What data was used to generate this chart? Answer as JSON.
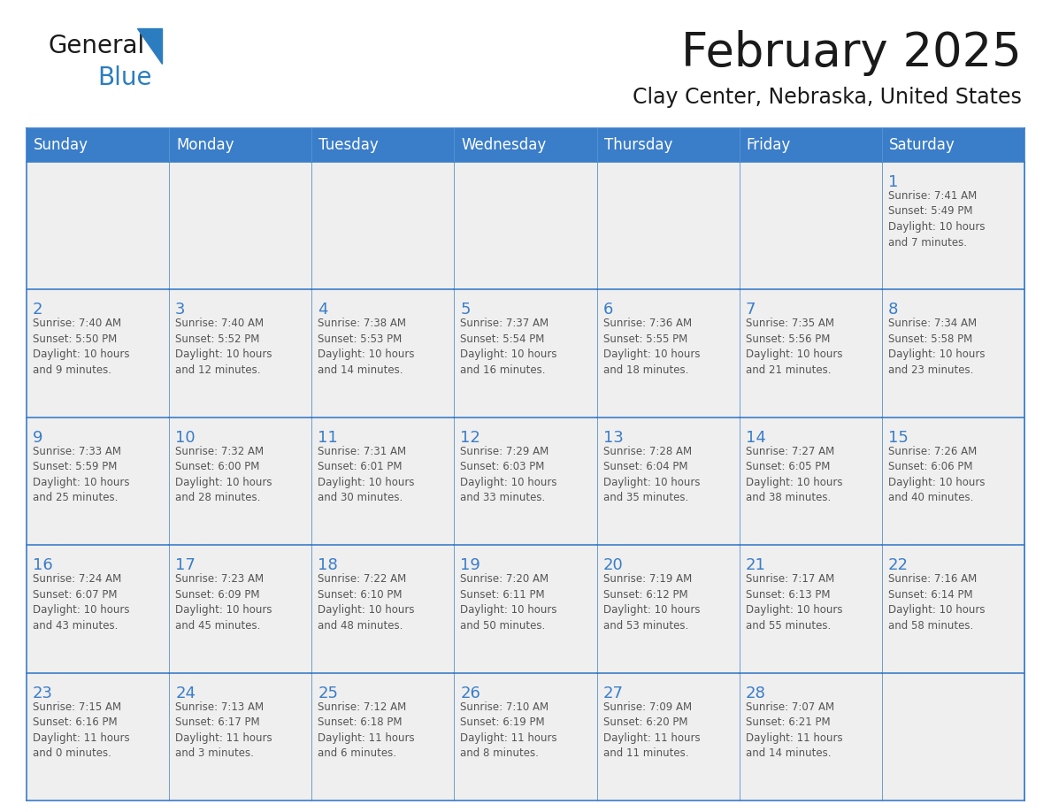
{
  "title": "February 2025",
  "subtitle": "Clay Center, Nebraska, United States",
  "header_bg": "#3A7DC9",
  "header_text": "#FFFFFF",
  "cell_bg_light": "#EFEFEF",
  "cell_bg_white": "#FFFFFF",
  "border_color": "#3A7DC9",
  "day_names": [
    "Sunday",
    "Monday",
    "Tuesday",
    "Wednesday",
    "Thursday",
    "Friday",
    "Saturday"
  ],
  "logo_general_color": "#1a1a1a",
  "logo_blue_color": "#2B7DC0",
  "title_color": "#1a1a1a",
  "subtitle_color": "#1a1a1a",
  "day_num_color": "#3A7DC9",
  "cell_text_color": "#555555",
  "calendar": [
    [
      {
        "day": "",
        "info": ""
      },
      {
        "day": "",
        "info": ""
      },
      {
        "day": "",
        "info": ""
      },
      {
        "day": "",
        "info": ""
      },
      {
        "day": "",
        "info": ""
      },
      {
        "day": "",
        "info": ""
      },
      {
        "day": "1",
        "info": "Sunrise: 7:41 AM\nSunset: 5:49 PM\nDaylight: 10 hours\nand 7 minutes."
      }
    ],
    [
      {
        "day": "2",
        "info": "Sunrise: 7:40 AM\nSunset: 5:50 PM\nDaylight: 10 hours\nand 9 minutes."
      },
      {
        "day": "3",
        "info": "Sunrise: 7:40 AM\nSunset: 5:52 PM\nDaylight: 10 hours\nand 12 minutes."
      },
      {
        "day": "4",
        "info": "Sunrise: 7:38 AM\nSunset: 5:53 PM\nDaylight: 10 hours\nand 14 minutes."
      },
      {
        "day": "5",
        "info": "Sunrise: 7:37 AM\nSunset: 5:54 PM\nDaylight: 10 hours\nand 16 minutes."
      },
      {
        "day": "6",
        "info": "Sunrise: 7:36 AM\nSunset: 5:55 PM\nDaylight: 10 hours\nand 18 minutes."
      },
      {
        "day": "7",
        "info": "Sunrise: 7:35 AM\nSunset: 5:56 PM\nDaylight: 10 hours\nand 21 minutes."
      },
      {
        "day": "8",
        "info": "Sunrise: 7:34 AM\nSunset: 5:58 PM\nDaylight: 10 hours\nand 23 minutes."
      }
    ],
    [
      {
        "day": "9",
        "info": "Sunrise: 7:33 AM\nSunset: 5:59 PM\nDaylight: 10 hours\nand 25 minutes."
      },
      {
        "day": "10",
        "info": "Sunrise: 7:32 AM\nSunset: 6:00 PM\nDaylight: 10 hours\nand 28 minutes."
      },
      {
        "day": "11",
        "info": "Sunrise: 7:31 AM\nSunset: 6:01 PM\nDaylight: 10 hours\nand 30 minutes."
      },
      {
        "day": "12",
        "info": "Sunrise: 7:29 AM\nSunset: 6:03 PM\nDaylight: 10 hours\nand 33 minutes."
      },
      {
        "day": "13",
        "info": "Sunrise: 7:28 AM\nSunset: 6:04 PM\nDaylight: 10 hours\nand 35 minutes."
      },
      {
        "day": "14",
        "info": "Sunrise: 7:27 AM\nSunset: 6:05 PM\nDaylight: 10 hours\nand 38 minutes."
      },
      {
        "day": "15",
        "info": "Sunrise: 7:26 AM\nSunset: 6:06 PM\nDaylight: 10 hours\nand 40 minutes."
      }
    ],
    [
      {
        "day": "16",
        "info": "Sunrise: 7:24 AM\nSunset: 6:07 PM\nDaylight: 10 hours\nand 43 minutes."
      },
      {
        "day": "17",
        "info": "Sunrise: 7:23 AM\nSunset: 6:09 PM\nDaylight: 10 hours\nand 45 minutes."
      },
      {
        "day": "18",
        "info": "Sunrise: 7:22 AM\nSunset: 6:10 PM\nDaylight: 10 hours\nand 48 minutes."
      },
      {
        "day": "19",
        "info": "Sunrise: 7:20 AM\nSunset: 6:11 PM\nDaylight: 10 hours\nand 50 minutes."
      },
      {
        "day": "20",
        "info": "Sunrise: 7:19 AM\nSunset: 6:12 PM\nDaylight: 10 hours\nand 53 minutes."
      },
      {
        "day": "21",
        "info": "Sunrise: 7:17 AM\nSunset: 6:13 PM\nDaylight: 10 hours\nand 55 minutes."
      },
      {
        "day": "22",
        "info": "Sunrise: 7:16 AM\nSunset: 6:14 PM\nDaylight: 10 hours\nand 58 minutes."
      }
    ],
    [
      {
        "day": "23",
        "info": "Sunrise: 7:15 AM\nSunset: 6:16 PM\nDaylight: 11 hours\nand 0 minutes."
      },
      {
        "day": "24",
        "info": "Sunrise: 7:13 AM\nSunset: 6:17 PM\nDaylight: 11 hours\nand 3 minutes."
      },
      {
        "day": "25",
        "info": "Sunrise: 7:12 AM\nSunset: 6:18 PM\nDaylight: 11 hours\nand 6 minutes."
      },
      {
        "day": "26",
        "info": "Sunrise: 7:10 AM\nSunset: 6:19 PM\nDaylight: 11 hours\nand 8 minutes."
      },
      {
        "day": "27",
        "info": "Sunrise: 7:09 AM\nSunset: 6:20 PM\nDaylight: 11 hours\nand 11 minutes."
      },
      {
        "day": "28",
        "info": "Sunrise: 7:07 AM\nSunset: 6:21 PM\nDaylight: 11 hours\nand 14 minutes."
      },
      {
        "day": "",
        "info": ""
      }
    ]
  ]
}
